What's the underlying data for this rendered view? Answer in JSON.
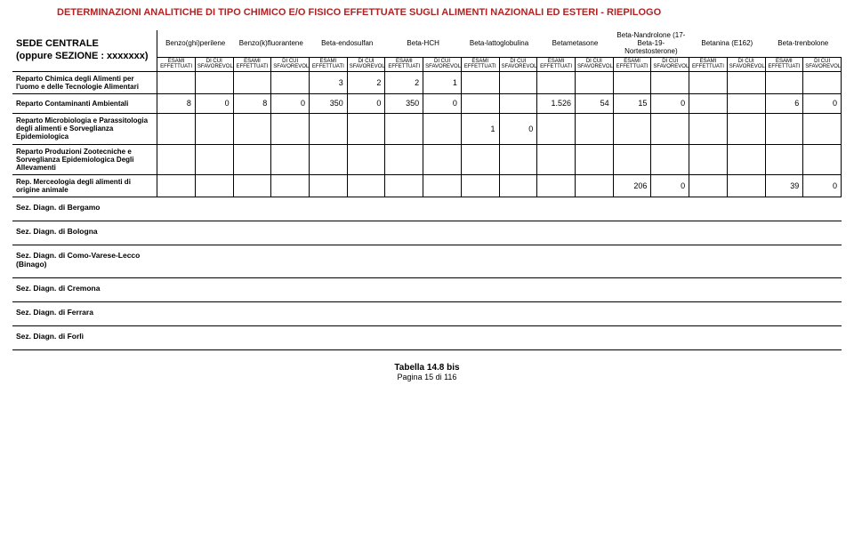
{
  "title": "DETERMINAZIONI ANALITICHE DI TIPO CHIMICO E/O FISICO EFFETTUATE SUGLI ALIMENTI NAZIONALI ED ESTERI - RIEPILOGO",
  "sede_label_1": "SEDE CENTRALE",
  "sede_label_2": "(oppure SEZIONE : xxxxxxx)",
  "col_groups": [
    "Benzo(ghi)perilene",
    "Benzo(k)fluorantene",
    "Beta-endosulfan",
    "Beta-HCH",
    "Beta-lattoglobulina",
    "Betametasone",
    "Beta-Nandrolone (17-Beta-19-Nortestosterone)",
    "Betanina (E162)",
    "Beta-trenbolone"
  ],
  "sub_a": "ESAMI EFFETTUATI",
  "sub_b": "DI CUI SFAVOREVOLI",
  "rows": [
    {
      "label": "Reparto Chimica degli Alimenti per l'uomo e delle Tecnologie Alimentari",
      "vals": [
        "",
        "",
        "",
        "",
        "3",
        "2",
        "2",
        "1",
        "",
        "",
        "",
        "",
        "",
        "",
        "",
        "",
        "",
        ""
      ]
    },
    {
      "label": "Reparto Contaminanti Ambientali",
      "vals": [
        "8",
        "0",
        "8",
        "0",
        "350",
        "0",
        "350",
        "0",
        "",
        "",
        "1.526",
        "54",
        "15",
        "0",
        "",
        "",
        "6",
        "0"
      ]
    },
    {
      "label": "Reparto Microbiologia e Parassitologia degli alimenti e Sorveglianza Epidemiologica",
      "vals": [
        "",
        "",
        "",
        "",
        "",
        "",
        "",
        "",
        "1",
        "0",
        "",
        "",
        "",
        "",
        "",
        "",
        "",
        ""
      ]
    },
    {
      "label": "Reparto Produzioni Zootecniche e Sorveglianza Epidemiologica Degli Allevamenti",
      "vals": [
        "",
        "",
        "",
        "",
        "",
        "",
        "",
        "",
        "",
        "",
        "",
        "",
        "",
        "",
        "",
        "",
        "",
        ""
      ]
    },
    {
      "label": "Rep. Merceologia degli alimenti di origine animale",
      "vals": [
        "",
        "",
        "",
        "",
        "",
        "",
        "",
        "",
        "",
        "",
        "",
        "",
        "206",
        "0",
        "",
        "",
        "39",
        "0"
      ]
    }
  ],
  "sections": [
    "Sez. Diagn. di Bergamo",
    "Sez. Diagn. di Bologna",
    "Sez. Diagn. di Como-Varese-Lecco (Binago)",
    "Sez. Diagn. di Cremona",
    "Sez. Diagn. di Ferrara",
    "Sez. Diagn. di Forlì"
  ],
  "footer_1": "Tabella  14.8 bis",
  "footer_2": "Pagina 15 di 116",
  "colors": {
    "title": "#b22222",
    "border": "#000000",
    "bg": "#ffffff"
  }
}
